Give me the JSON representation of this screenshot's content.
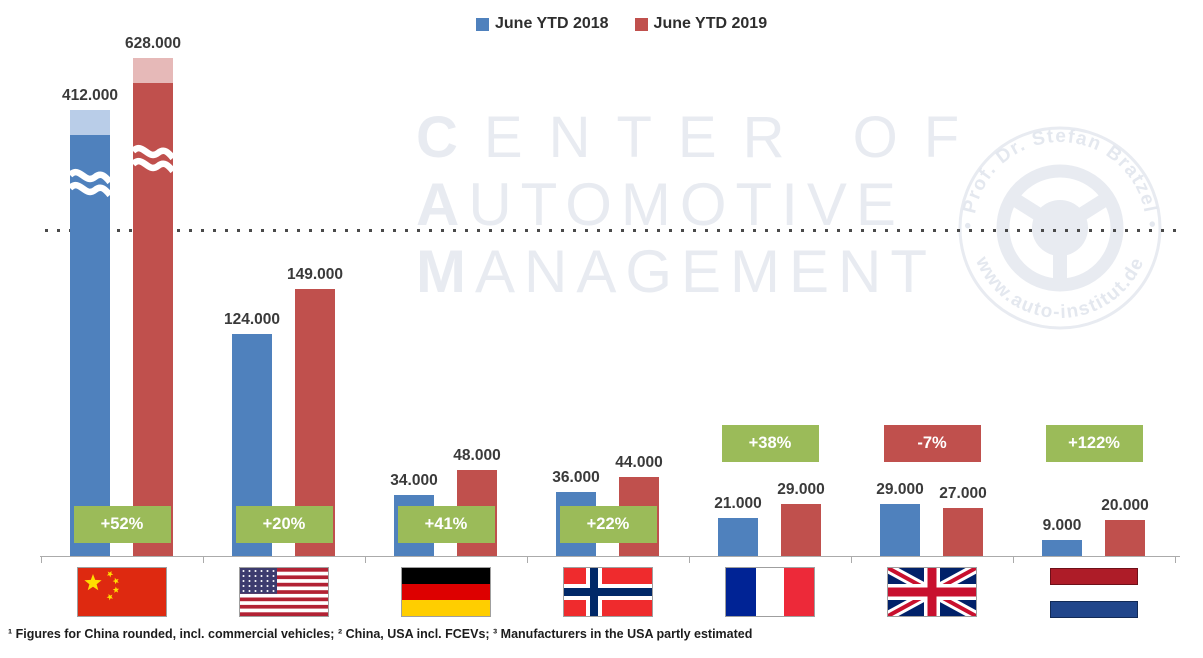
{
  "legend": [
    {
      "label": "June YTD 2018",
      "color": "#4f81bd"
    },
    {
      "label": "June YTD 2019",
      "color": "#c0504d"
    }
  ],
  "watermark": {
    "lines": [
      "CENTER OF",
      "AUTOMOTIVE",
      "MANAGEMENT"
    ],
    "stamp_top": "• Prof. Dr. Stefan Bratzel •",
    "stamp_bottom": "www.auto-institut.de"
  },
  "footnote": "¹ Figures for China rounded, incl. commercial vehicles; ² China, USA incl. FCEVs; ³ Manufacturers in the USA partly estimated",
  "colors": {
    "bar_2018": "#4f81bd",
    "bar_2018_light": "#b9cde8",
    "bar_2019": "#c0504d",
    "bar_2019_light": "#e6b9b8",
    "badge_positive": "#9bbb59",
    "badge_negative": "#c0504d",
    "watermark": "#e8ebf1",
    "axis": "#ababab"
  },
  "chart_data": {
    "type": "bar",
    "series_names": [
      "June YTD 2018",
      "June YTD 2019"
    ],
    "legend_position": "top-center",
    "broken_axis_note": "China bars exceed scale; drawn with axis break",
    "groups": [
      {
        "country": "China",
        "flag": "cn",
        "values": [
          412000,
          628000
        ],
        "labels": [
          "412.000",
          "628.000"
        ],
        "change": "+52%",
        "change_positive": true,
        "broken_axis": true,
        "badge_position": "overlay"
      },
      {
        "country": "USA",
        "flag": "us",
        "values": [
          124000,
          149000
        ],
        "labels": [
          "124.000",
          "149.000"
        ],
        "change": "+20%",
        "change_positive": true,
        "broken_axis": false,
        "badge_position": "overlay"
      },
      {
        "country": "Germany",
        "flag": "de",
        "values": [
          34000,
          48000
        ],
        "labels": [
          "34.000",
          "48.000"
        ],
        "change": "+41%",
        "change_positive": true,
        "broken_axis": false,
        "badge_position": "overlay"
      },
      {
        "country": "Norway",
        "flag": "no",
        "values": [
          36000,
          44000
        ],
        "labels": [
          "36.000",
          "44.000"
        ],
        "change": "+22%",
        "change_positive": true,
        "broken_axis": false,
        "badge_position": "overlay"
      },
      {
        "country": "France",
        "flag": "fr",
        "values": [
          21000,
          29000
        ],
        "labels": [
          "21.000",
          "29.000"
        ],
        "change": "+38%",
        "change_positive": true,
        "broken_axis": false,
        "badge_position": "above"
      },
      {
        "country": "UK",
        "flag": "gb",
        "values": [
          29000,
          27000
        ],
        "labels": [
          "29.000",
          "27.000"
        ],
        "change": "-7%",
        "change_positive": false,
        "broken_axis": false,
        "badge_position": "above"
      },
      {
        "country": "Netherlands",
        "flag": "nl",
        "values": [
          9000,
          20000
        ],
        "labels": [
          "9.000",
          "20.000"
        ],
        "change": "+122%",
        "change_positive": true,
        "broken_axis": false,
        "badge_position": "above"
      }
    ]
  }
}
